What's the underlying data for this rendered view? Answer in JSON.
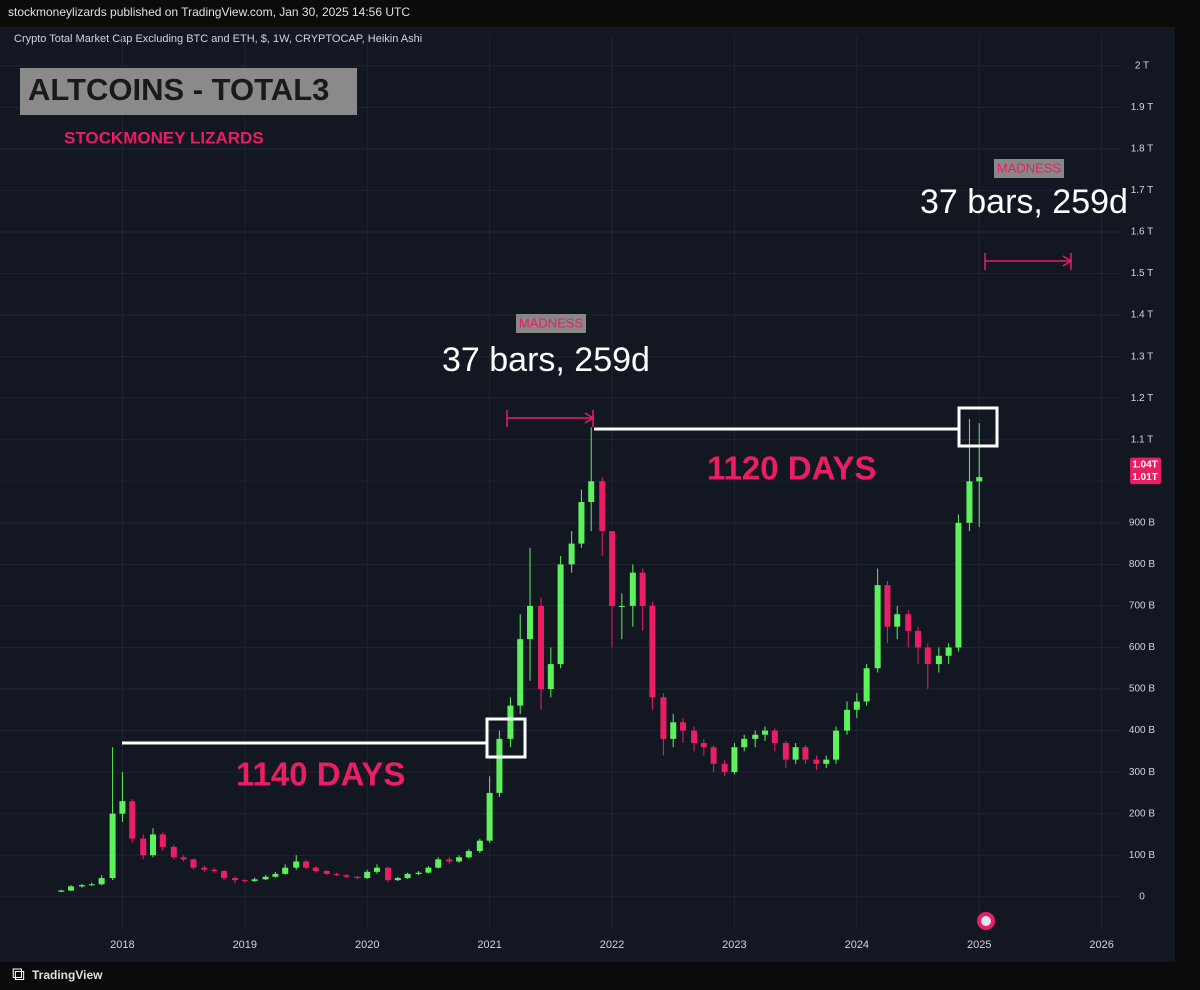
{
  "header": {
    "publisher": "stockmoneylizards published on TradingView.com, Jan 30, 2025 14:56 UTC"
  },
  "footer": {
    "brand": "TradingView"
  },
  "chart_data": {
    "type": "candlestick",
    "title": "Crypto Total Market Cap Excluding BTC and ETH, $, 1W, CRYPTOCAP, Heikin Ashi",
    "annotations": {
      "heading": "ALTCOINS - TOTAL3",
      "brand": "STOCKMONEY LIZARDS",
      "madness": [
        "MADNESS",
        "MADNESS"
      ],
      "bars": [
        "37 bars, 259d",
        "37 bars, 259d"
      ],
      "days": [
        "1140 DAYS",
        "1120 DAYS"
      ]
    },
    "up_color": "#5cf25c",
    "down_color": "#e91e63",
    "x": [
      2017.5,
      2017.58,
      2017.67,
      2017.75,
      2017.83,
      2017.92,
      2018.0,
      2018.08,
      2018.17,
      2018.25,
      2018.33,
      2018.42,
      2018.5,
      2018.58,
      2018.67,
      2018.75,
      2018.83,
      2018.92,
      2019.0,
      2019.08,
      2019.17,
      2019.25,
      2019.33,
      2019.42,
      2019.5,
      2019.58,
      2019.67,
      2019.75,
      2019.83,
      2019.92,
      2020.0,
      2020.08,
      2020.17,
      2020.25,
      2020.33,
      2020.42,
      2020.5,
      2020.58,
      2020.67,
      2020.75,
      2020.83,
      2020.92,
      2021.0,
      2021.08,
      2021.17,
      2021.25,
      2021.33,
      2021.42,
      2021.5,
      2021.58,
      2021.67,
      2021.75,
      2021.83,
      2021.92,
      2022.0,
      2022.08,
      2022.17,
      2022.25,
      2022.33,
      2022.42,
      2022.5,
      2022.58,
      2022.67,
      2022.75,
      2022.83,
      2022.92,
      2023.0,
      2023.08,
      2023.17,
      2023.25,
      2023.33,
      2023.42,
      2023.5,
      2023.58,
      2023.67,
      2023.75,
      2023.83,
      2023.92,
      2024.0,
      2024.08,
      2024.17,
      2024.25,
      2024.33,
      2024.42,
      2024.5,
      2024.58,
      2024.67,
      2024.75,
      2024.83,
      2024.92,
      2025.0
    ],
    "open": [
      12,
      15,
      25,
      28,
      30,
      45,
      200,
      230,
      140,
      100,
      150,
      120,
      95,
      90,
      70,
      65,
      62,
      45,
      40,
      38,
      42,
      48,
      55,
      70,
      85,
      70,
      62,
      55,
      52,
      48,
      45,
      60,
      70,
      40,
      45,
      55,
      58,
      70,
      90,
      85,
      95,
      110,
      135,
      250,
      380,
      460,
      620,
      700,
      500,
      560,
      800,
      850,
      950,
      1000,
      880,
      700,
      700,
      780,
      700,
      480,
      380,
      420,
      400,
      370,
      360,
      320,
      300,
      360,
      380,
      390,
      400,
      370,
      330,
      360,
      330,
      320,
      330,
      400,
      450,
      470,
      550,
      750,
      650,
      680,
      640,
      600,
      560,
      580,
      600,
      900,
      1000
    ],
    "high": [
      17,
      28,
      31,
      34,
      52,
      360,
      300,
      235,
      150,
      165,
      155,
      125,
      100,
      92,
      75,
      70,
      64,
      50,
      42,
      46,
      52,
      60,
      78,
      100,
      88,
      74,
      64,
      58,
      54,
      50,
      65,
      78,
      72,
      48,
      58,
      62,
      74,
      95,
      95,
      100,
      115,
      140,
      290,
      400,
      480,
      680,
      840,
      720,
      600,
      820,
      880,
      980,
      1130,
      1010,
      880,
      730,
      800,
      790,
      710,
      490,
      440,
      430,
      410,
      380,
      365,
      330,
      370,
      390,
      400,
      410,
      405,
      375,
      370,
      365,
      340,
      340,
      410,
      470,
      490,
      560,
      790,
      760,
      700,
      690,
      650,
      610,
      600,
      610,
      920,
      1150,
      1140
    ],
    "low": [
      11,
      14,
      22,
      26,
      28,
      40,
      180,
      130,
      90,
      95,
      110,
      90,
      85,
      65,
      60,
      58,
      40,
      33,
      34,
      36,
      40,
      46,
      53,
      65,
      66,
      58,
      52,
      50,
      45,
      42,
      43,
      55,
      35,
      38,
      43,
      52,
      56,
      68,
      80,
      82,
      92,
      105,
      130,
      240,
      360,
      440,
      520,
      450,
      480,
      550,
      780,
      840,
      880,
      820,
      600,
      620,
      650,
      640,
      450,
      340,
      360,
      370,
      350,
      340,
      300,
      290,
      295,
      350,
      360,
      375,
      350,
      310,
      320,
      320,
      305,
      310,
      320,
      390,
      430,
      460,
      540,
      610,
      620,
      600,
      560,
      500,
      540,
      560,
      590,
      880,
      890
    ],
    "close": [
      15,
      25,
      28,
      30,
      45,
      200,
      230,
      140,
      100,
      150,
      120,
      95,
      90,
      70,
      65,
      62,
      45,
      40,
      38,
      42,
      48,
      55,
      70,
      85,
      70,
      62,
      55,
      52,
      48,
      45,
      60,
      70,
      40,
      45,
      55,
      58,
      70,
      90,
      85,
      95,
      110,
      135,
      250,
      380,
      460,
      620,
      700,
      500,
      560,
      800,
      850,
      950,
      1000,
      880,
      700,
      700,
      780,
      700,
      480,
      380,
      420,
      400,
      370,
      360,
      320,
      300,
      360,
      380,
      390,
      400,
      370,
      330,
      360,
      330,
      320,
      330,
      400,
      450,
      470,
      550,
      750,
      650,
      680,
      640,
      600,
      560,
      580,
      600,
      900,
      1000,
      1010
    ],
    "xlim": [
      2017.0,
      2026.15
    ],
    "xticks": [
      2018,
      2019,
      2020,
      2021,
      2022,
      2023,
      2024,
      2025,
      2026
    ],
    "ylim": [
      -80,
      2050
    ],
    "yticks": [
      0,
      {
        "value": 100,
        "label": "100 B"
      },
      {
        "value": 200,
        "label": "200 B"
      },
      {
        "value": 300,
        "label": "300 B"
      },
      {
        "value": 400,
        "label": "400 B"
      },
      {
        "value": 500,
        "label": "500 B"
      },
      {
        "value": 600,
        "label": "600 B"
      },
      {
        "value": 700,
        "label": "700 B"
      },
      {
        "value": 800,
        "label": "800 B"
      },
      {
        "value": 900,
        "label": "900 B"
      },
      {
        "value": 1000,
        "label": "1 T"
      },
      {
        "value": 1100,
        "label": "1.1 T"
      },
      {
        "value": 1200,
        "label": "1.2 T"
      },
      {
        "value": 1300,
        "label": "1.3 T"
      },
      {
        "value": 1400,
        "label": "1.4 T"
      },
      {
        "value": 1500,
        "label": "1.5 T"
      },
      {
        "value": 1600,
        "label": "1.6 T"
      },
      {
        "value": 1700,
        "label": "1.7 T"
      },
      {
        "value": 1800,
        "label": "1.8 T"
      },
      {
        "value": 1900,
        "label": "1.9 T"
      },
      {
        "value": 2000,
        "label": "2 T"
      }
    ],
    "price_labels": [
      {
        "value": 1040,
        "label": "1.04T"
      },
      {
        "value": 1010,
        "label": "1.01T"
      }
    ],
    "grid": true
  }
}
